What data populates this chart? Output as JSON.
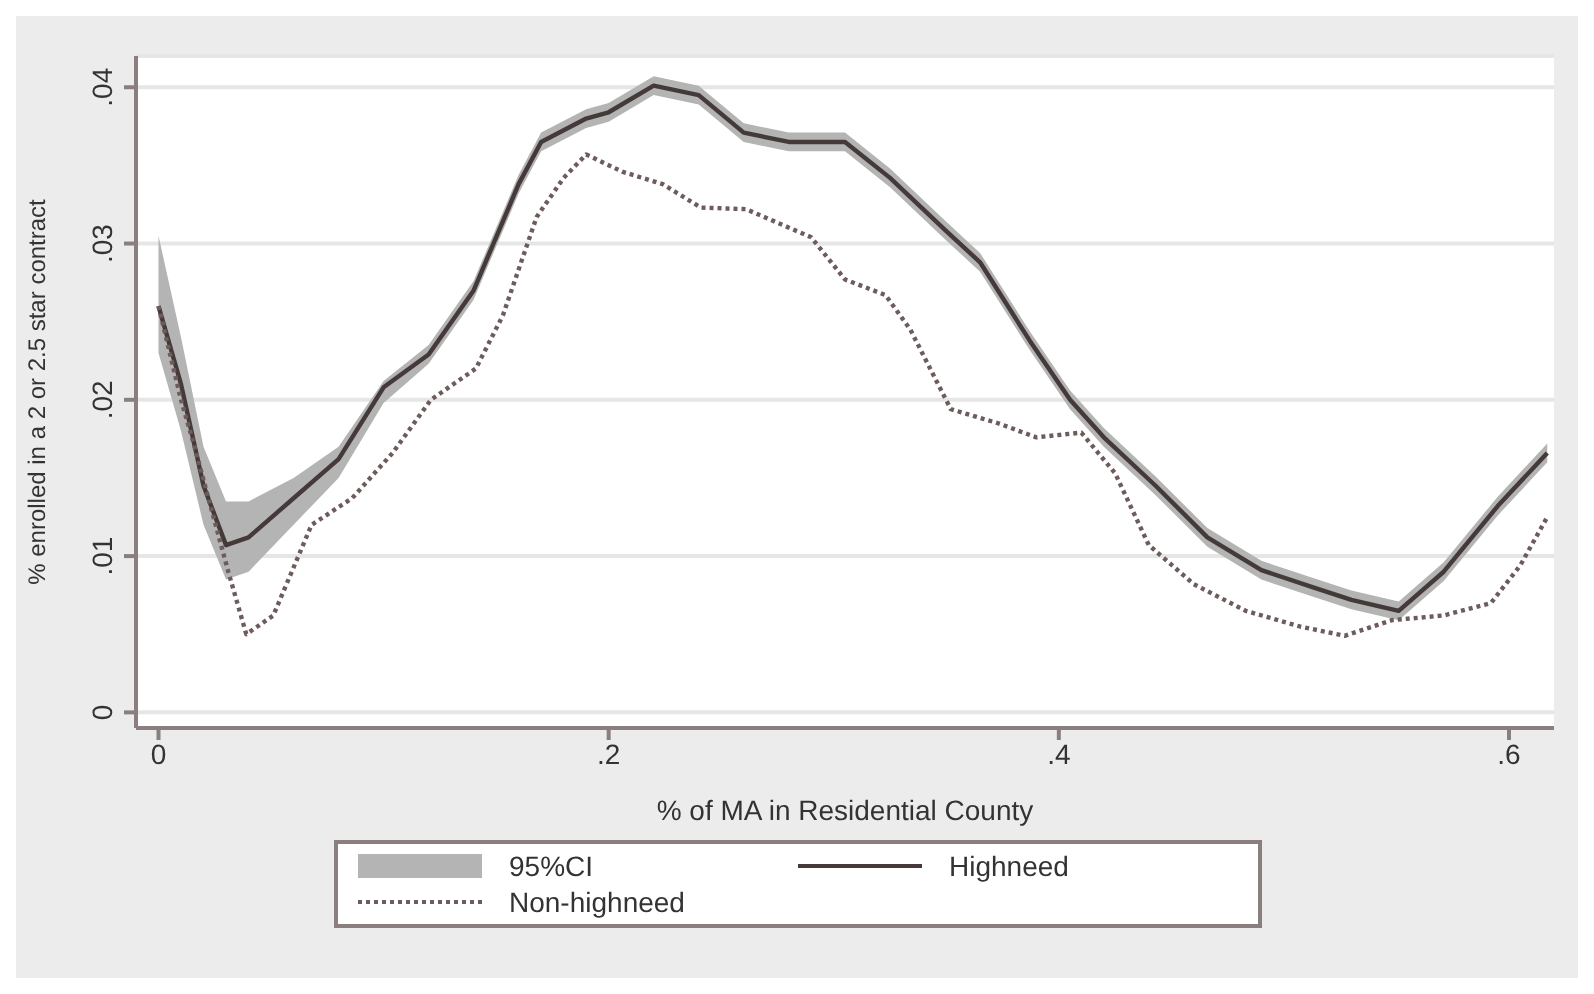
{
  "chart_data": {
    "type": "line",
    "xlabel": "% of MA in Residential County",
    "ylabel": "% enrolled in a 2 or 2.5 star contract",
    "xlim": [
      -0.01,
      0.62
    ],
    "xticks": [
      0,
      {
        "value": 0.2,
        "label": ".2"
      },
      {
        "value": 0.4,
        "label": ".4"
      },
      {
        "value": 0.6,
        "label": ".6"
      }
    ],
    "ylim": [
      -0.001,
      0.042
    ],
    "yticks": [
      0,
      {
        "value": 0.01,
        "label": ".01"
      },
      {
        "value": 0.02,
        "label": ".02"
      },
      {
        "value": 0.03,
        "label": ".03"
      },
      {
        "value": 0.04,
        "label": ".04"
      }
    ],
    "grid": "y",
    "legend": "bottom",
    "marker": "none",
    "annotations": [
      "95%CI"
    ],
    "series": [
      {
        "name": "Highneed",
        "color": "#453a3a",
        "line_style": "solid",
        "x": [
          0,
          0.01,
          0.02,
          0.03,
          0.04,
          0.06,
          0.08,
          0.1,
          0.12,
          0.14,
          0.16,
          0.17,
          0.19,
          0.2,
          0.22,
          0.24,
          0.26,
          0.28,
          0.305,
          0.325,
          0.35,
          0.365,
          0.387,
          0.405,
          0.42,
          0.443,
          0.466,
          0.49,
          0.513,
          0.53,
          0.551,
          0.571,
          0.595,
          0.617
        ],
        "values": [
          0.026,
          0.021,
          0.0145,
          0.0107,
          0.0112,
          0.0137,
          0.0162,
          0.0208,
          0.0229,
          0.027,
          0.0338,
          0.0365,
          0.038,
          0.0384,
          0.0401,
          0.0395,
          0.0371,
          0.0365,
          0.0365,
          0.0342,
          0.0308,
          0.0288,
          0.0238,
          0.02,
          0.0176,
          0.0145,
          0.0112,
          0.0091,
          0.008,
          0.0072,
          0.0065,
          0.009,
          0.0132,
          0.0166
        ],
        "lower": [
          0.023,
          0.018,
          0.012,
          0.0085,
          0.009,
          0.012,
          0.015,
          0.0198,
          0.0223,
          0.0264,
          0.0332,
          0.0359,
          0.0374,
          0.0378,
          0.0395,
          0.0389,
          0.0365,
          0.0359,
          0.0359,
          0.0336,
          0.0302,
          0.0282,
          0.0232,
          0.0194,
          0.017,
          0.0139,
          0.0106,
          0.0085,
          0.0074,
          0.0066,
          0.0059,
          0.0084,
          0.0126,
          0.016
        ],
        "upper": [
          0.0305,
          0.024,
          0.017,
          0.0135,
          0.0135,
          0.015,
          0.017,
          0.0212,
          0.0235,
          0.0276,
          0.0344,
          0.0371,
          0.0386,
          0.039,
          0.0407,
          0.0401,
          0.0377,
          0.0371,
          0.0371,
          0.0348,
          0.0314,
          0.0294,
          0.0244,
          0.0206,
          0.0182,
          0.0151,
          0.0118,
          0.0097,
          0.0086,
          0.0078,
          0.0071,
          0.0096,
          0.0138,
          0.0172
        ]
      },
      {
        "name": "Non-highneed",
        "color": "#6e5c5c",
        "line_style": "dotted",
        "x": [
          0,
          0.01,
          0.016,
          0.031,
          0.039,
          0.051,
          0.068,
          0.086,
          0.104,
          0.121,
          0.141,
          0.153,
          0.168,
          0.18,
          0.19,
          0.206,
          0.224,
          0.241,
          0.261,
          0.29,
          0.305,
          0.323,
          0.334,
          0.352,
          0.373,
          0.39,
          0.41,
          0.425,
          0.44,
          0.46,
          0.483,
          0.507,
          0.527,
          0.548,
          0.571,
          0.592,
          0.605,
          0.617
        ],
        "values": [
          0.026,
          0.02,
          0.017,
          0.009,
          0.005,
          0.0062,
          0.012,
          0.0137,
          0.0166,
          0.02,
          0.022,
          0.0254,
          0.0317,
          0.0342,
          0.0357,
          0.0346,
          0.0338,
          0.0323,
          0.0322,
          0.0304,
          0.0277,
          0.0267,
          0.0245,
          0.0194,
          0.0185,
          0.0176,
          0.0179,
          0.0153,
          0.0107,
          0.0082,
          0.0065,
          0.0055,
          0.0049,
          0.0059,
          0.0062,
          0.007,
          0.0094,
          0.0125
        ]
      }
    ]
  }
}
